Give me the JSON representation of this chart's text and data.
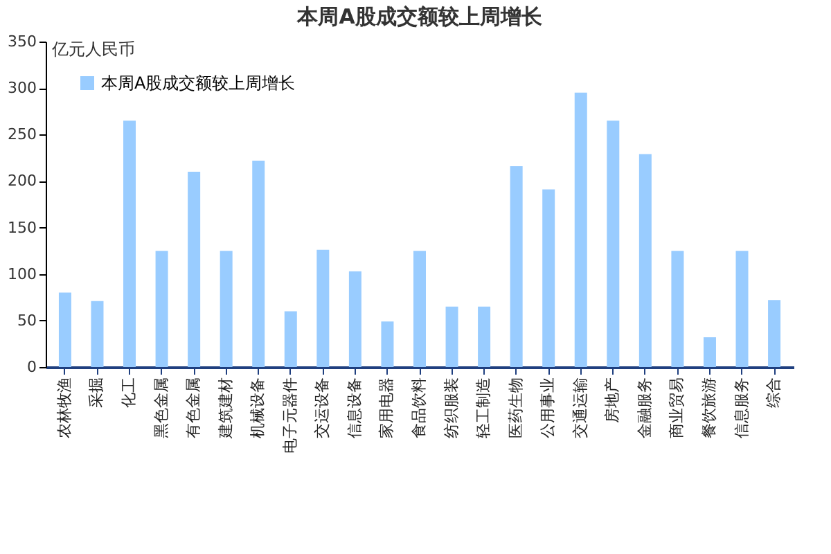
{
  "chart_data": {
    "type": "bar",
    "title": "本周A股成交额较上周增长",
    "ylabel": "亿元人民币",
    "categories": [
      "农林牧渔",
      "采掘",
      "化工",
      "黑色金属",
      "有色金属",
      "建筑建材",
      "机械设备",
      "电子元器件",
      "交运设备",
      "信息设备",
      "家用电器",
      "食品饮料",
      "纺织服装",
      "轻工制造",
      "医药生物",
      "公用事业",
      "交通运输",
      "房地产",
      "金融服务",
      "商业贸易",
      "餐饮旅游",
      "信息服务",
      "综合"
    ],
    "series": [
      {
        "name": "本周A股成交额较上周增长",
        "color": "#99ccff",
        "values": [
          80,
          71,
          265,
          125,
          210,
          125,
          222,
          60,
          126,
          103,
          49,
          125,
          65,
          65,
          216,
          191,
          295,
          265,
          229,
          125,
          32,
          125,
          72
        ]
      }
    ],
    "ylim": [
      0,
      350
    ],
    "yticks": [
      0,
      50,
      100,
      150,
      200,
      250,
      300,
      350
    ],
    "grid": false,
    "legend": "top left"
  }
}
